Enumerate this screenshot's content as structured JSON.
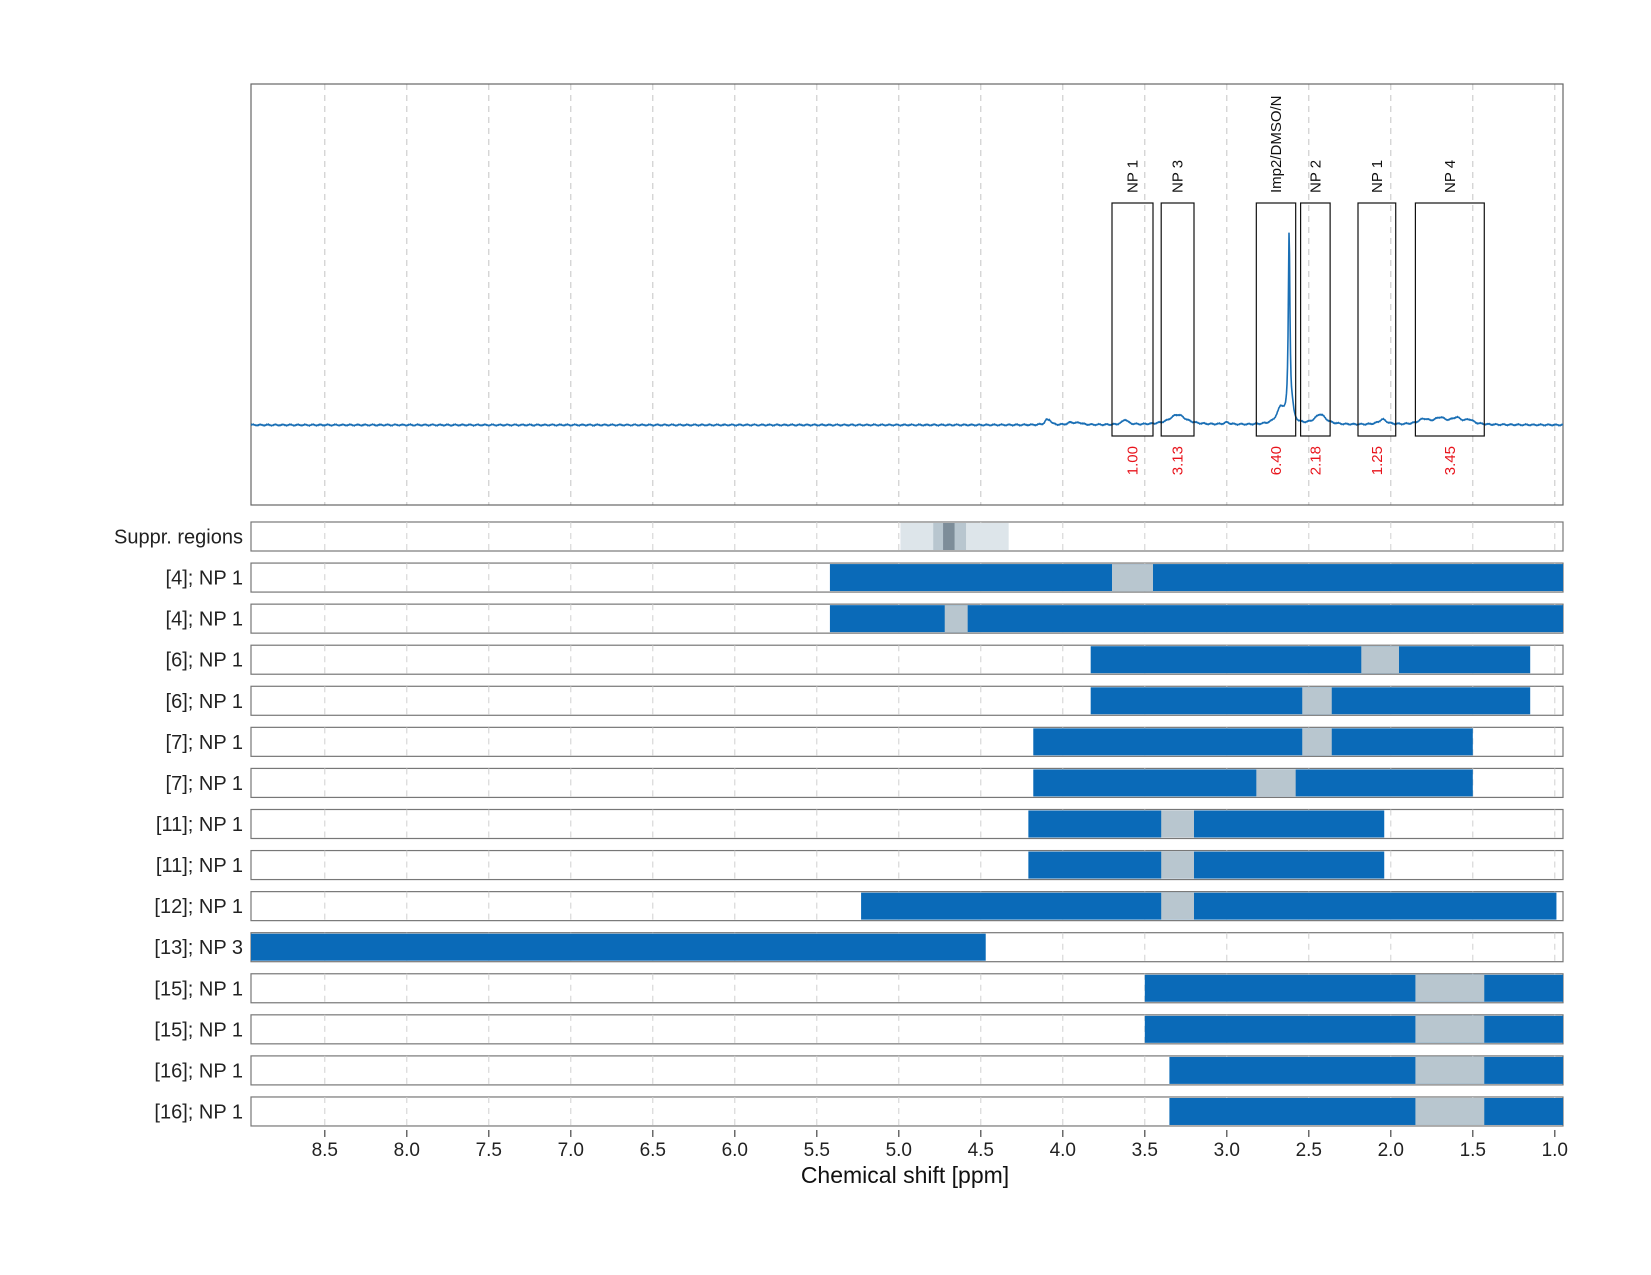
{
  "chart_data": {
    "type": "nmr-spectrum-with-range-tracks",
    "xlabel": "Chemical shift [ppm]",
    "x_reversed": true,
    "xlim": [
      8.95,
      0.95
    ],
    "x_ticks": [
      "8.5",
      "8.0",
      "7.5",
      "7.0",
      "6.5",
      "6.0",
      "5.5",
      "5.0",
      "4.5",
      "4.0",
      "3.5",
      "3.0",
      "2.5",
      "2.0",
      "1.5",
      "1.0"
    ],
    "grid": "dashed vertical",
    "colors": {
      "spectrum": "#1a6fb5",
      "range_fill": "#0a6ab8",
      "excluded_fill": "#b8c6cf",
      "integral_text": "#e8141c",
      "suppr_light": "#dde5ea",
      "suppr_mid": "#b8c6cf",
      "suppr_dark": "#7d8d99"
    },
    "spectrum_peaks": [
      {
        "shift": 4.1,
        "height": 0.02,
        "width": 0.012
      },
      {
        "shift": 4.08,
        "height": 0.02,
        "width": 0.012
      },
      {
        "shift": 3.95,
        "height": 0.012,
        "width": 0.02
      },
      {
        "shift": 3.9,
        "height": 0.01,
        "width": 0.02
      },
      {
        "shift": 3.62,
        "height": 0.025,
        "width": 0.02
      },
      {
        "shift": 3.3,
        "height": 0.05,
        "width": 0.06
      },
      {
        "shift": 3.0,
        "height": 0.01,
        "width": 0.02
      },
      {
        "shift": 2.67,
        "height": 0.08,
        "width": 0.03
      },
      {
        "shift": 2.62,
        "height": 0.92,
        "width": 0.006
      },
      {
        "shift": 2.6,
        "height": 0.05,
        "width": 0.01
      },
      {
        "shift": 2.43,
        "height": 0.05,
        "width": 0.04
      },
      {
        "shift": 2.05,
        "height": 0.025,
        "width": 0.03
      },
      {
        "shift": 1.8,
        "height": 0.025,
        "width": 0.04
      },
      {
        "shift": 1.7,
        "height": 0.03,
        "width": 0.04
      },
      {
        "shift": 1.6,
        "height": 0.03,
        "width": 0.04
      },
      {
        "shift": 1.52,
        "height": 0.02,
        "width": 0.03
      }
    ],
    "annotations": [
      {
        "label": "NP 1",
        "from": 3.7,
        "to": 3.45,
        "integral": "1.00"
      },
      {
        "label": "NP 3",
        "from": 3.4,
        "to": 3.2,
        "integral": "3.13"
      },
      {
        "label": "Imp2/DMSO/N",
        "from": 2.82,
        "to": 2.58,
        "integral": "6.40"
      },
      {
        "label": "NP 2",
        "from": 2.55,
        "to": 2.37,
        "integral": "2.18"
      },
      {
        "label": "NP 1",
        "from": 2.2,
        "to": 1.97,
        "integral": "1.25"
      },
      {
        "label": "NP 4",
        "from": 1.85,
        "to": 1.43,
        "integral": "3.45"
      }
    ],
    "suppr_regions": {
      "label": "Suppr. regions",
      "bands": [
        {
          "from": 4.99,
          "to": 4.33,
          "level": "light"
        },
        {
          "from": 4.79,
          "to": 4.59,
          "level": "mid"
        },
        {
          "from": 4.73,
          "to": 4.66,
          "level": "dark"
        }
      ]
    },
    "tracks": [
      {
        "label": "[4]; NP 1",
        "range": [
          5.42,
          0.95
        ],
        "excluded": [
          3.7,
          3.45
        ]
      },
      {
        "label": "[4]; NP 1",
        "range": [
          5.42,
          0.95
        ],
        "excluded": [
          4.72,
          4.58
        ]
      },
      {
        "label": "[6]; NP 1",
        "range": [
          3.83,
          1.15
        ],
        "excluded": [
          2.18,
          1.95
        ]
      },
      {
        "label": "[6]; NP 1",
        "range": [
          3.83,
          1.15
        ],
        "excluded": [
          2.54,
          2.36
        ]
      },
      {
        "label": "[7]; NP 1",
        "range": [
          4.18,
          1.5
        ],
        "excluded": [
          2.54,
          2.36
        ]
      },
      {
        "label": "[7]; NP 1",
        "range": [
          4.18,
          1.5
        ],
        "excluded": [
          2.82,
          2.58
        ]
      },
      {
        "label": "[11]; NP 1",
        "range": [
          4.21,
          2.04
        ],
        "excluded": [
          3.4,
          3.2
        ]
      },
      {
        "label": "[11]; NP 1",
        "range": [
          4.21,
          2.04
        ],
        "excluded": [
          3.4,
          3.2
        ]
      },
      {
        "label": "[12]; NP 1",
        "range": [
          5.23,
          0.99
        ],
        "excluded": [
          3.4,
          3.2
        ]
      },
      {
        "label": "[13]; NP 3",
        "range": [
          8.95,
          4.47
        ],
        "excluded": null
      },
      {
        "label": "[15]; NP 1",
        "range": [
          3.5,
          0.95
        ],
        "excluded": [
          1.85,
          1.43
        ]
      },
      {
        "label": "[15]; NP 1",
        "range": [
          3.5,
          0.95
        ],
        "excluded": [
          1.85,
          1.43
        ]
      },
      {
        "label": "[16]; NP 1",
        "range": [
          3.35,
          0.95
        ],
        "excluded": [
          1.85,
          1.43
        ]
      },
      {
        "label": "[16]; NP 1",
        "range": [
          3.35,
          0.95
        ],
        "excluded": [
          1.85,
          1.43
        ]
      }
    ]
  }
}
